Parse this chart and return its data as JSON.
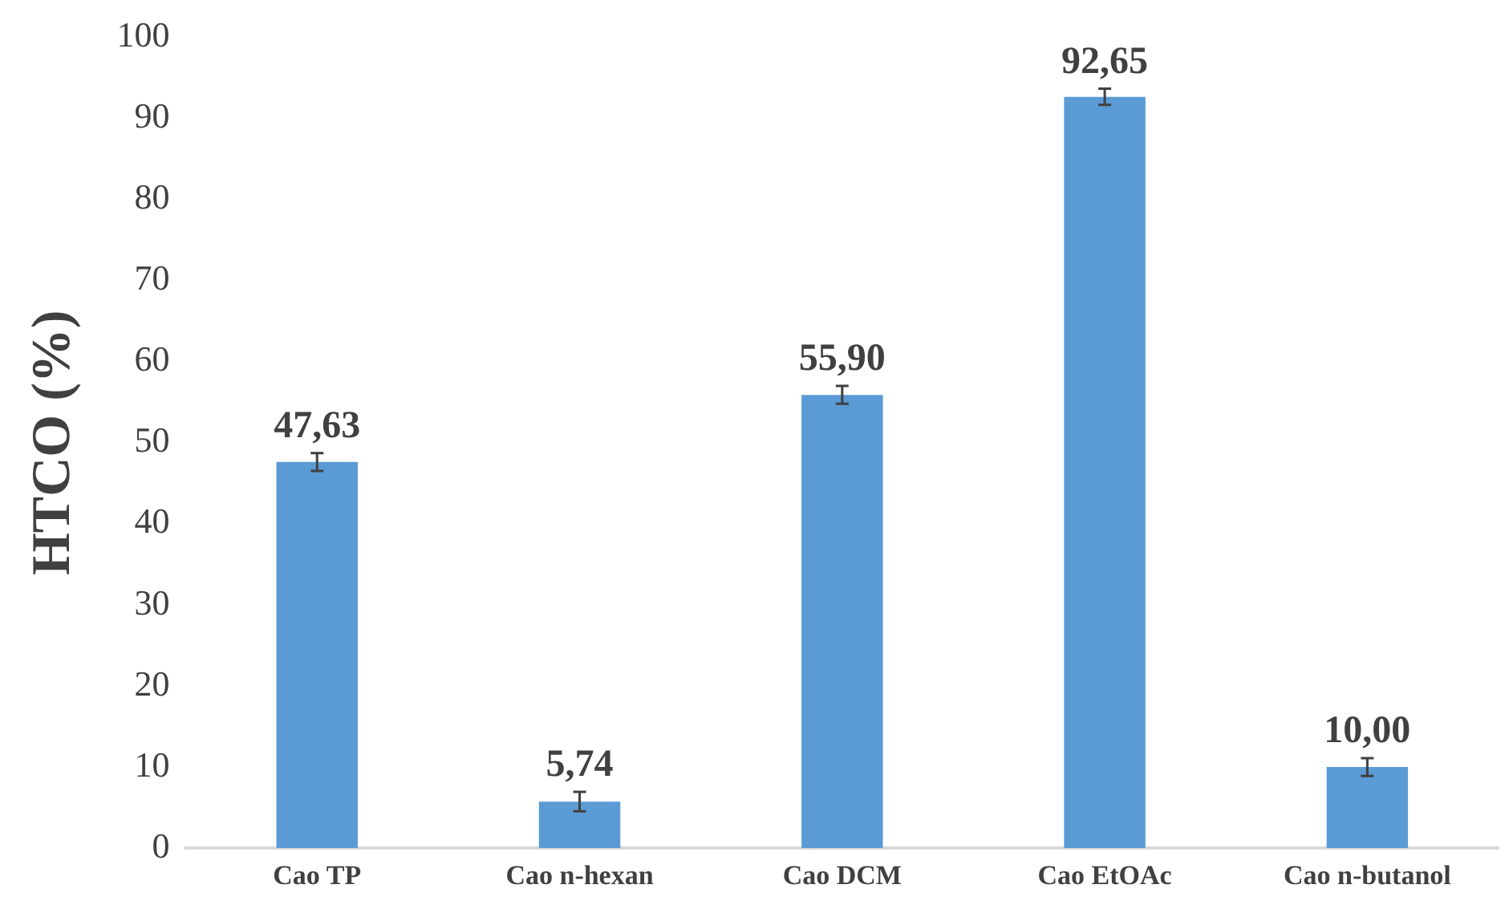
{
  "chart_data": {
    "type": "bar",
    "ylabel": "HTCO (%)",
    "categories": [
      "Cao TP",
      "Cao n-hexan",
      "Cao DCM",
      "Cao EtOAc",
      "Cao n-butanol"
    ],
    "values": [
      47.63,
      5.74,
      55.9,
      92.65,
      10.0
    ],
    "errors": [
      1.1,
      1.2,
      1.1,
      1.0,
      1.1
    ],
    "value_labels": [
      "47,63",
      "5,74",
      "55,90",
      "92,65",
      "10,00"
    ],
    "color": "#5b9bd5",
    "ylim": [
      0,
      100
    ],
    "yticks": [
      0,
      10,
      20,
      30,
      40,
      50,
      60,
      70,
      80,
      90,
      100
    ],
    "grid": false,
    "legend": false
  }
}
